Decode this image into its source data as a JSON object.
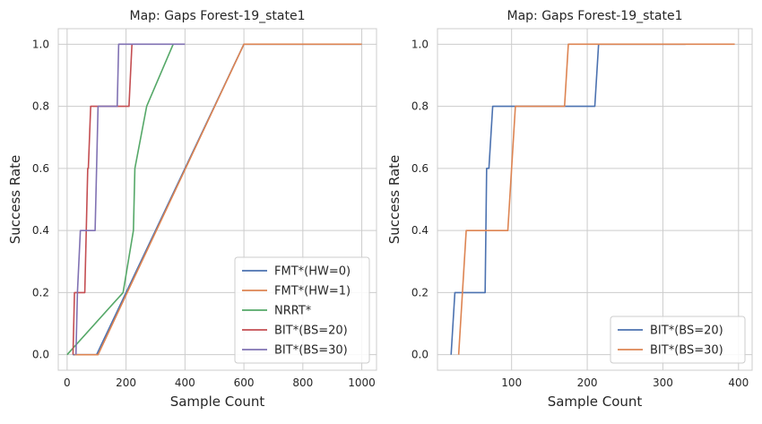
{
  "chart_data": [
    {
      "type": "line",
      "title": "Map: Gaps Forest-19_state1",
      "xlabel": "Sample Count",
      "ylabel": "Success Rate",
      "xlim": [
        -30,
        1050
      ],
      "ylim": [
        -0.05,
        1.05
      ],
      "xticks": [
        0,
        200,
        400,
        600,
        800,
        1000
      ],
      "yticks": [
        0.0,
        0.2,
        0.4,
        0.6,
        0.8,
        1.0
      ],
      "xtick_labels": [
        "0",
        "200",
        "400",
        "600",
        "800",
        "1000"
      ],
      "ytick_labels": [
        "0.0",
        "0.2",
        "0.4",
        "0.6",
        "0.8",
        "1.0"
      ],
      "grid": true,
      "legend_position": "lower-right",
      "series": [
        {
          "name": "FMT*(HW=0)",
          "color": "#4c72b0",
          "x": [
            20,
            100,
            600,
            1000
          ],
          "y": [
            0.0,
            0.0,
            1.0,
            1.0
          ]
        },
        {
          "name": "FMT*(HW=1)",
          "color": "#dd8452",
          "x": [
            25,
            105,
            600,
            1000
          ],
          "y": [
            0.0,
            0.0,
            1.0,
            1.0
          ]
        },
        {
          "name": "NRRT*",
          "color": "#55a868",
          "x": [
            0,
            190,
            225,
            230,
            270,
            360
          ],
          "y": [
            0.0,
            0.2,
            0.4,
            0.6,
            0.8,
            1.0
          ]
        },
        {
          "name": "BIT*(BS=20)",
          "color": "#c44e52",
          "x": [
            20,
            25,
            30,
            60,
            70,
            72,
            80,
            210,
            220,
            225
          ],
          "y": [
            0.0,
            0.2,
            0.2,
            0.2,
            0.6,
            0.6,
            0.8,
            0.8,
            1.0,
            1.0
          ]
        },
        {
          "name": "BIT*(BS=30)",
          "color": "#8172b3",
          "x": [
            30,
            35,
            45,
            95,
            105,
            170,
            175,
            400
          ],
          "y": [
            0.0,
            0.2,
            0.4,
            0.4,
            0.8,
            0.8,
            1.0,
            1.0
          ]
        }
      ]
    },
    {
      "type": "line",
      "title": "Map: Gaps Forest-19_state1",
      "xlabel": "Sample Count",
      "ylabel": "Success Rate",
      "xlim": [
        2,
        418
      ],
      "ylim": [
        -0.05,
        1.05
      ],
      "xticks": [
        100,
        200,
        300,
        400
      ],
      "yticks": [
        0.0,
        0.2,
        0.4,
        0.6,
        0.8,
        1.0
      ],
      "xtick_labels": [
        "100",
        "200",
        "300",
        "400"
      ],
      "ytick_labels": [
        "0.0",
        "0.2",
        "0.4",
        "0.6",
        "0.8",
        "1.0"
      ],
      "grid": true,
      "legend_position": "lower-right",
      "series": [
        {
          "name": "BIT*(BS=20)",
          "color": "#4c72b0",
          "x": [
            20,
            25,
            65,
            67,
            70,
            75,
            210,
            215,
            330
          ],
          "y": [
            0.0,
            0.2,
            0.2,
            0.6,
            0.6,
            0.8,
            0.8,
            1.0,
            1.0
          ]
        },
        {
          "name": "BIT*(BS=30)",
          "color": "#dd8452",
          "x": [
            30,
            40,
            95,
            105,
            170,
            175,
            395
          ],
          "y": [
            0.0,
            0.4,
            0.4,
            0.8,
            0.8,
            1.0,
            1.0
          ]
        }
      ]
    }
  ]
}
